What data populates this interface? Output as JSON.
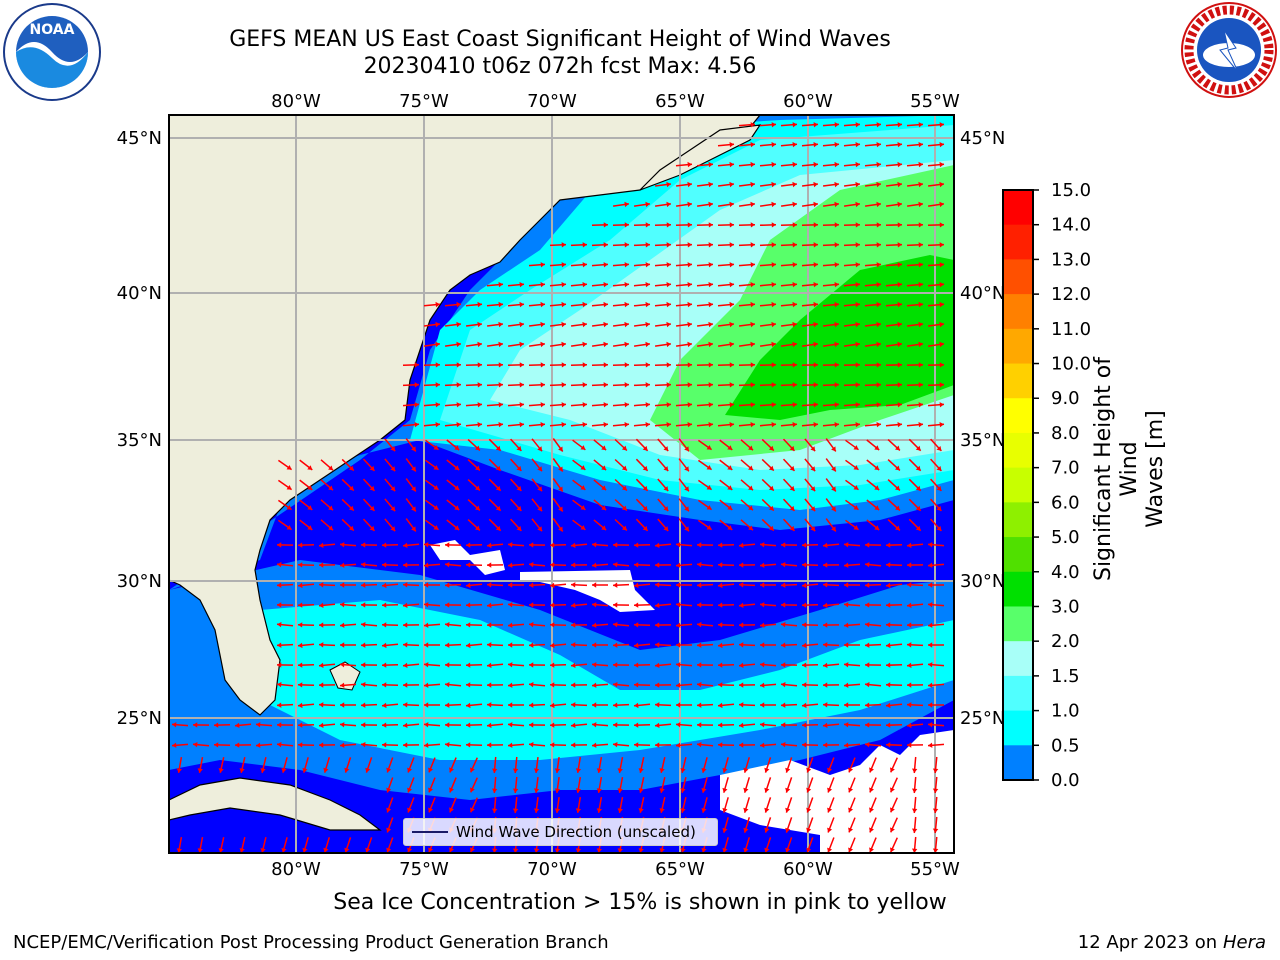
{
  "title_line1": "GEFS MEAN US East Coast Significant Height of Wind Waves",
  "title_line2": "20230410 t06z 072h fcst   Max: 4.56",
  "colors": {
    "land": "#eeeedc",
    "ocean_low": "#0000ff",
    "arrow": "#ff0000",
    "grid": "#b0b0b0"
  },
  "map": {
    "lon_labels": [
      "80°W",
      "75°W",
      "70°W",
      "65°W",
      "60°W",
      "55°W"
    ],
    "lat_labels": [
      "45°N",
      "40°N",
      "35°N",
      "30°N",
      "25°N"
    ],
    "legend_label": "Wind Wave Direction (unscaled)"
  },
  "colorbar": {
    "label_line1": "Significant Height of Wind",
    "label_line2": "Waves [m]",
    "ticks": [
      "15.0",
      "14.0",
      "13.0",
      "12.0",
      "11.0",
      "10.0",
      "9.0",
      "8.0",
      "7.0",
      "6.0",
      "5.0",
      "4.0",
      "3.0",
      "2.0",
      "1.5",
      "1.0",
      "0.5",
      "0.0"
    ],
    "colors": [
      "#ff0000",
      "#ff2000",
      "#ff5000",
      "#ff8000",
      "#ffa800",
      "#ffd000",
      "#ffff00",
      "#e8ff00",
      "#c8ff00",
      "#8ef000",
      "#50e000",
      "#00e000",
      "#58ff6a",
      "#a8fff8",
      "#50ffff",
      "#00ffff",
      "#0080ff",
      "#0000ff"
    ]
  },
  "footer": {
    "note": "Sea Ice Concentration > 15% is shown in pink to yellow",
    "left": "NCEP/EMC/Verification Post Processing Product Generation Branch",
    "right_date": "12 Apr 2023 on",
    "right_host": "Hera"
  },
  "logos": {
    "noaa_text": "NOAA",
    "nws_text": "NATIONAL WEATHER SERVICE"
  }
}
